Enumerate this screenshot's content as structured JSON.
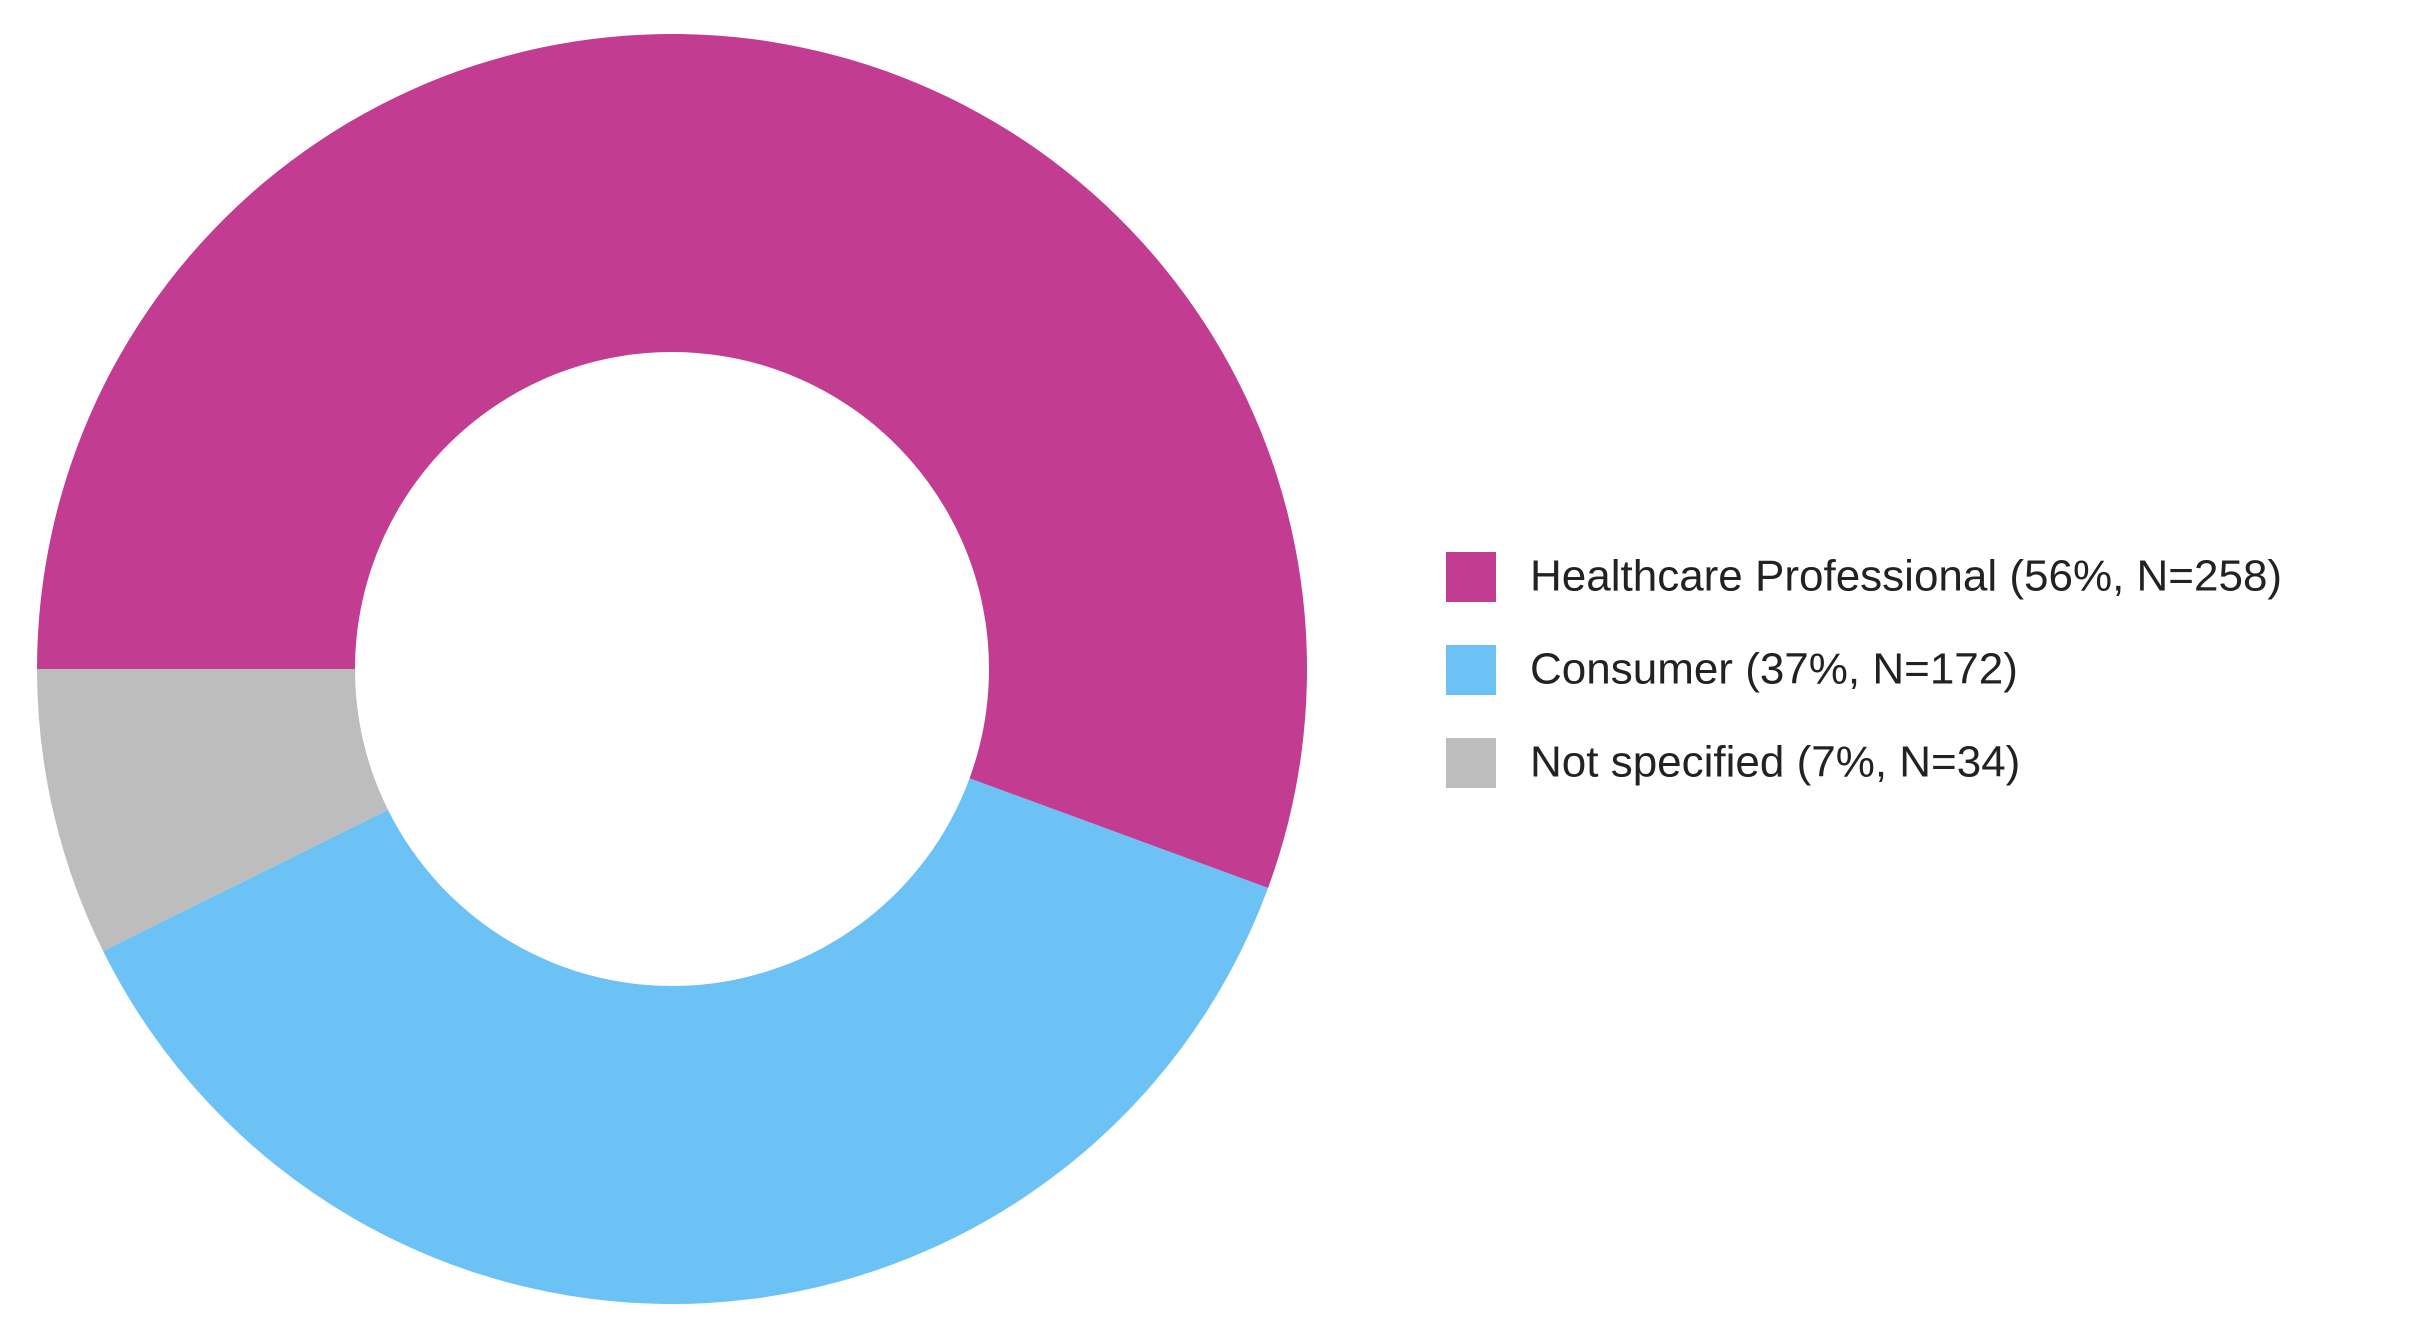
{
  "chart_data": {
    "type": "donut",
    "categories": [
      "Healthcare Professional (56%, N=258)",
      "Consumer (37%, N=172)",
      "Not specified (7%, N=34)"
    ],
    "values": [
      258,
      172,
      34
    ],
    "colors": [
      "#c23c92",
      "#6cc2f5",
      "#bdbdbd"
    ],
    "legend": "right"
  }
}
